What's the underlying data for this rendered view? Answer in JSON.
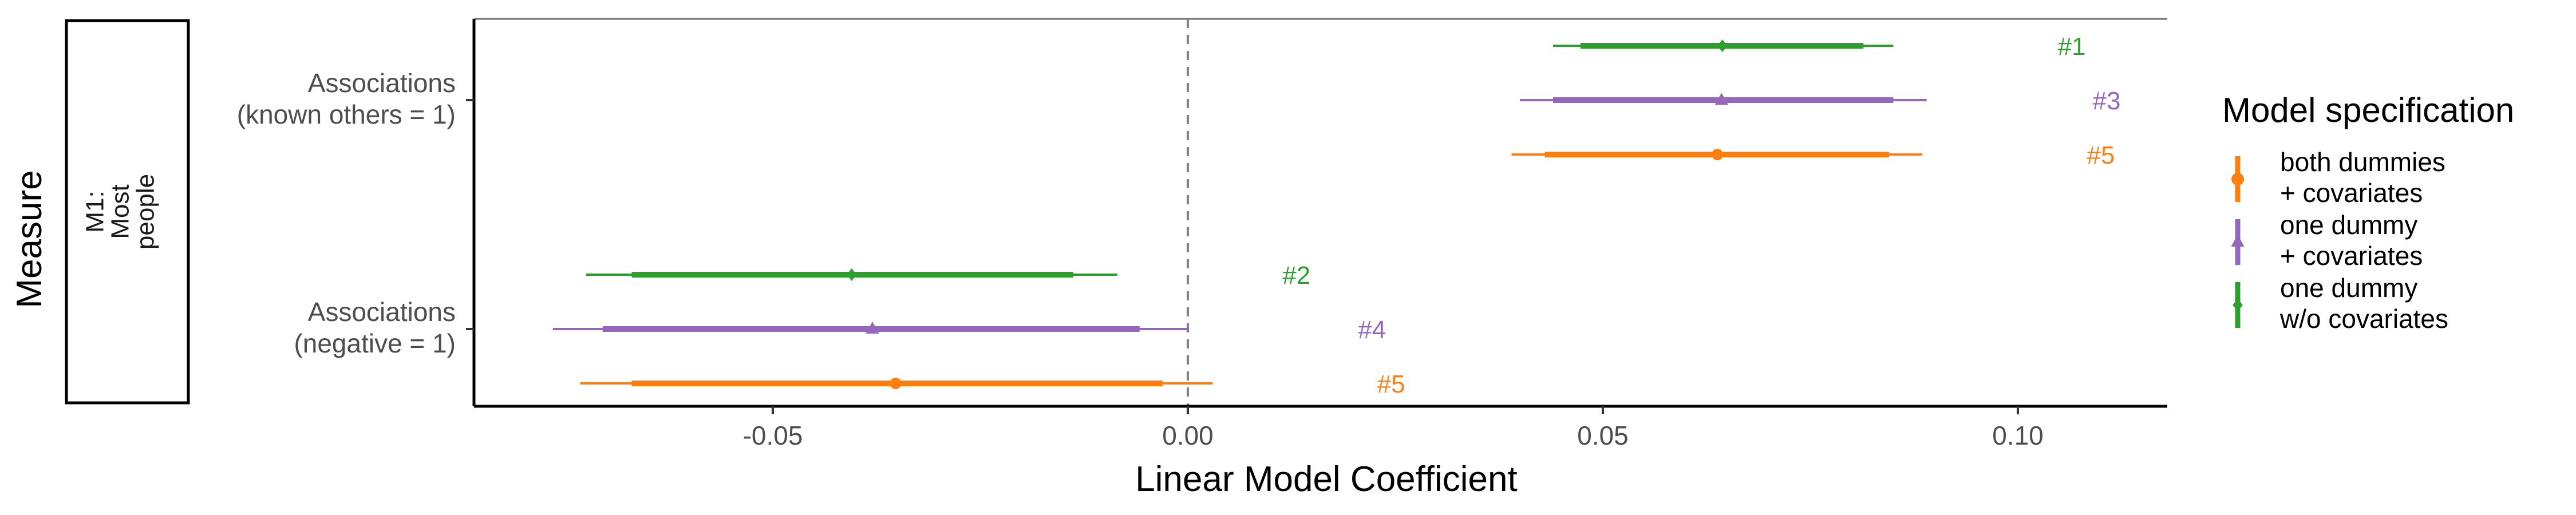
{
  "chart_data": {
    "type": "scatter",
    "title": "",
    "xlabel": "Linear Model Coefficient",
    "ylabel": "Measure",
    "facet_label": "M1:\nMost\npeople",
    "xlim": [
      -0.086,
      0.118
    ],
    "x_ticks": [
      -0.05,
      0.0,
      0.05,
      0.1
    ],
    "x_tick_labels": [
      "-0.05",
      "0.00",
      "0.05",
      "0.10"
    ],
    "reference_line": 0,
    "categories": [
      {
        "id": "known",
        "label": "Associations\n(known others = 1)"
      },
      {
        "id": "negative",
        "label": "Associations\n(negative = 1)"
      }
    ],
    "legend": {
      "title": "Model specification",
      "position": "right",
      "entries": [
        {
          "series": "both",
          "label": "both dummies\n+ covariates"
        },
        {
          "series": "one_cov",
          "label": "one dummy\n+ covariates"
        },
        {
          "series": "one_nocov",
          "label": "one dummy\nw/o covariates"
        }
      ]
    },
    "series": [
      {
        "id": "one_nocov",
        "color": "#2ca02c",
        "marker": "diamond",
        "points": [
          {
            "category": "known",
            "estimate": 0.0644,
            "inner": [
              0.0473,
              0.0814
            ],
            "outer": [
              0.044,
              0.085
            ],
            "annotation": "#1",
            "annotation_x": 0.1048
          },
          {
            "category": "negative",
            "estimate": -0.0405,
            "inner": [
              -0.067,
              -0.0138
            ],
            "outer": [
              -0.0725,
              -0.0085
            ],
            "annotation": "#2",
            "annotation_x": 0.0114
          }
        ]
      },
      {
        "id": "one_cov",
        "color": "#9467bd",
        "marker": "triangle",
        "points": [
          {
            "category": "known",
            "estimate": 0.0643,
            "inner": [
              0.044,
              0.085
            ],
            "outer": [
              0.04,
              0.089
            ],
            "annotation": "#3",
            "annotation_x": 0.109
          },
          {
            "category": "negative",
            "estimate": -0.038,
            "inner": [
              -0.0705,
              -0.0058
            ],
            "outer": [
              -0.0765,
              0.0
            ],
            "annotation": "#4",
            "annotation_x": 0.0205
          }
        ]
      },
      {
        "id": "both",
        "color": "#ff7f0e",
        "marker": "circle",
        "points": [
          {
            "category": "known",
            "estimate": 0.0638,
            "inner": [
              0.043,
              0.0845
            ],
            "outer": [
              0.039,
              0.0885
            ],
            "annotation": "#5",
            "annotation_x": 0.1083
          },
          {
            "category": "negative",
            "estimate": -0.0352,
            "inner": [
              -0.067,
              -0.003
            ],
            "outer": [
              -0.0732,
              0.003
            ],
            "annotation": "#5",
            "annotation_x": 0.0228
          }
        ]
      }
    ]
  }
}
